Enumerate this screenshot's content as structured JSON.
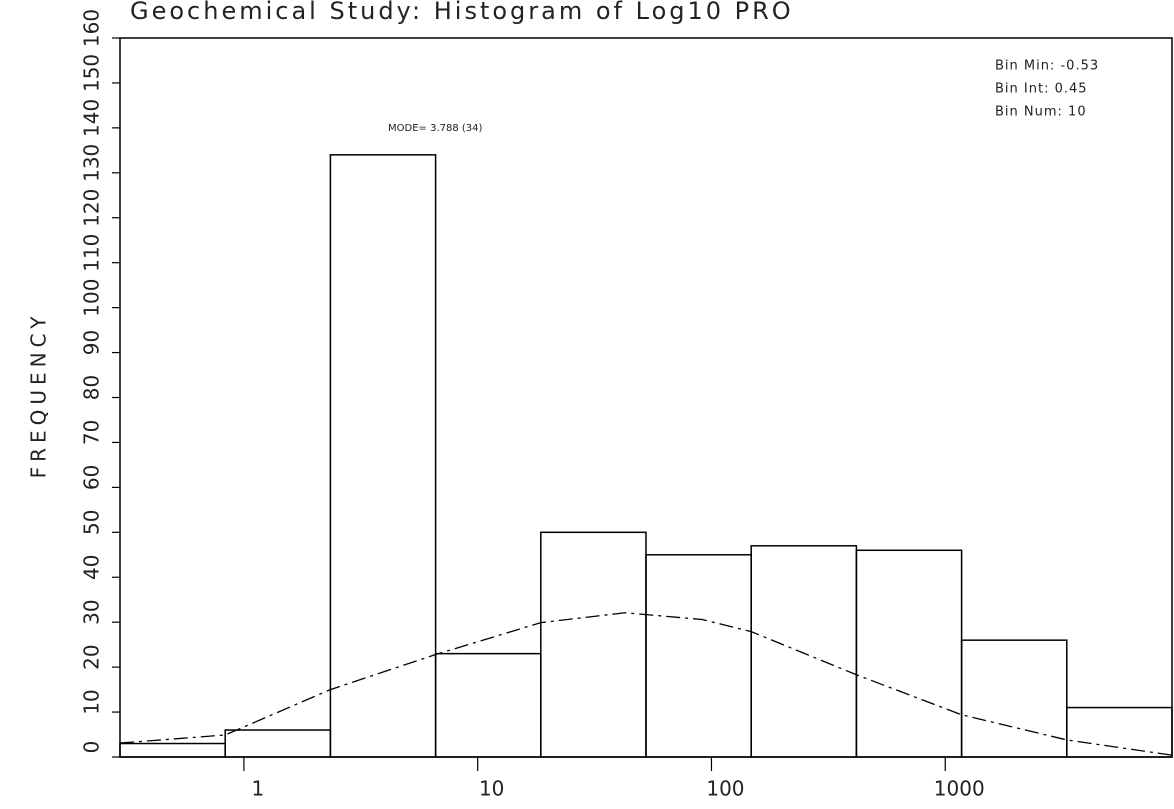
{
  "chart_data": {
    "type": "histogram",
    "title": "Geochemical Study: Histogram of  Log10  PRO",
    "ylabel": "FREQUENCY",
    "annotation": "MODE= 3.788 (34)",
    "info": [
      "Bin Min: -0.53",
      "Bin Int: 0.45",
      "Bin Num: 10"
    ],
    "bins": [
      -0.53,
      -0.08,
      0.37,
      0.82,
      1.27,
      1.72,
      2.17,
      2.62,
      3.07,
      3.52,
      3.97
    ],
    "counts": [
      3,
      6,
      134,
      23,
      50,
      45,
      47,
      46,
      26,
      11
    ],
    "curve": {
      "x": [
        -0.53,
        -0.08,
        0.37,
        0.82,
        1.27,
        1.63,
        1.96,
        2.17,
        2.62,
        3.07,
        3.52,
        3.97
      ],
      "y": [
        3.1,
        4.9,
        15,
        22.8,
        29.9,
        32.1,
        30.6,
        27.9,
        18.3,
        9.4,
        3.8,
        0.4
      ]
    },
    "xlim": [
      -0.53,
      3.97
    ],
    "xticks": [
      {
        "value": 0,
        "label": "1"
      },
      {
        "value": 1,
        "label": "10"
      },
      {
        "value": 2,
        "label": "100"
      },
      {
        "value": 3,
        "label": "1000"
      }
    ],
    "ylim": [
      0,
      160
    ],
    "yticks": [
      0,
      10,
      20,
      30,
      40,
      50,
      60,
      70,
      80,
      90,
      100,
      110,
      120,
      130,
      140,
      150,
      160
    ],
    "color": "#000000"
  }
}
